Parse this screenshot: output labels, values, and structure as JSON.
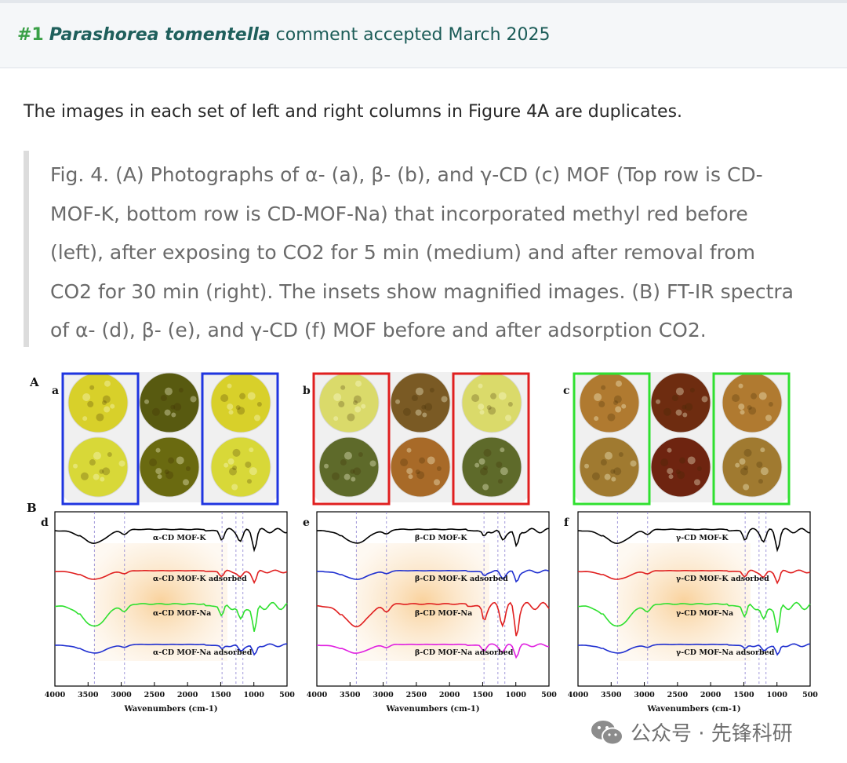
{
  "header": {
    "number": "#1",
    "species": "Parashorea tomentella",
    "status": "comment accepted March 2025"
  },
  "intro": "The images in each set of left and right columns in Figure 4A are duplicates.",
  "quote": "Fig. 4. (A) Photographs of α- (a), β- (b), and γ-CD (c) MOF (Top row is CD-MOF-K, bottom row is CD-MOF-Na) that incorporated methyl red before (left), after exposing to CO2 for 5 min (medium) and after removal from CO2 for 30 min (right). The insets show magnified images. (B) FT-IR spectra of α- (d), β- (e), and γ-CD (f) MOF before and after adsorption CO2.",
  "figure": {
    "label_A": "A",
    "label_B": "B",
    "panel_a": "a",
    "panel_b": "b",
    "panel_c": "c",
    "panel_d": "d",
    "panel_e": "e",
    "panel_f": "f",
    "box_colors": {
      "a": "#1f35e0",
      "b": "#e01f1f",
      "c": "#2fe02f"
    },
    "photo_colors": {
      "a": [
        [
          "#d8d02a",
          "#585a10",
          "#d8d02a"
        ],
        [
          "#d8d838",
          "#6a6a10",
          "#d8d838"
        ]
      ],
      "b": [
        [
          "#dada6a",
          "#7a5a24",
          "#dada6a"
        ],
        [
          "#5e6a2a",
          "#a86a28",
          "#5e6a2a"
        ]
      ],
      "c": [
        [
          "#b07a30",
          "#6e2c10",
          "#b07a30"
        ],
        [
          "#a07a30",
          "#6e2410",
          "#a07a30"
        ]
      ]
    }
  },
  "chart_data": [
    {
      "type": "line",
      "panel": "d",
      "xlabel": "Wavenumbers (cm-1)",
      "xlim": [
        4000,
        500
      ],
      "x_ticks": [
        4000,
        3500,
        3000,
        2500,
        2000,
        1500,
        1000,
        500
      ],
      "series": [
        {
          "name": "α-CD MOF-K",
          "color": "#000000"
        },
        {
          "name": "α-CD MOF-K adsorbed",
          "color": "#e01f1f"
        },
        {
          "name": "α-CD MOF-Na",
          "color": "#2fe02f"
        },
        {
          "name": "α-CD MOF-Na adsorbed",
          "color": "#1f2fd0"
        }
      ]
    },
    {
      "type": "line",
      "panel": "e",
      "xlabel": "Wavenumbers (cm-1)",
      "xlim": [
        4000,
        500
      ],
      "x_ticks": [
        4000,
        3500,
        3000,
        2500,
        2000,
        1500,
        1000,
        500
      ],
      "series": [
        {
          "name": "β-CD MOF-K",
          "color": "#000000"
        },
        {
          "name": "β-CD MOF-K adsorbed",
          "color": "#1f2fd0"
        },
        {
          "name": "β-CD MOF-Na",
          "color": "#e01f1f"
        },
        {
          "name": "β-CD MOF-Na adsorbed",
          "color": "#e01fe0"
        }
      ]
    },
    {
      "type": "line",
      "panel": "f",
      "xlabel": "Wavenumbers (cm-1)",
      "xlim": [
        4000,
        500
      ],
      "x_ticks": [
        4000,
        3500,
        3000,
        2500,
        2000,
        1500,
        1000,
        500
      ],
      "series": [
        {
          "name": "γ-CD MOF-K",
          "color": "#000000"
        },
        {
          "name": "γ-CD MOF-K adsorbed",
          "color": "#e01f1f"
        },
        {
          "name": "γ-CD MOF-Na",
          "color": "#2fe02f"
        },
        {
          "name": "γ-CD MOF-Na adsorbed",
          "color": "#1f2fd0"
        }
      ]
    }
  ],
  "watermark": {
    "text": "公众号 · 先锋科研",
    "icon": "wechat-icon"
  }
}
